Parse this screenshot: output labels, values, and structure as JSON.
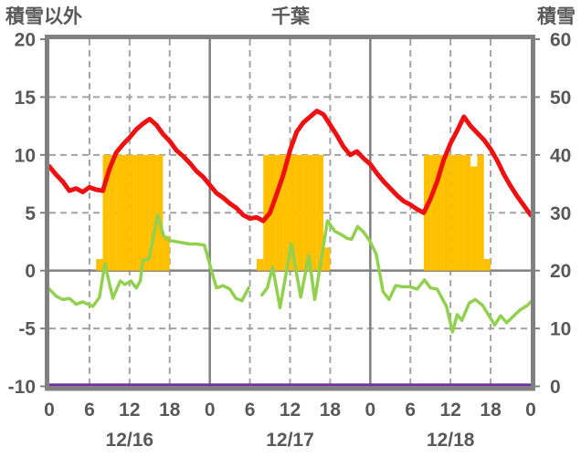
{
  "header": {
    "left_axis_title": "積雪以外",
    "chart_title": "千葉",
    "right_axis_title": "積雪"
  },
  "colors": {
    "background": "#ffffff",
    "border": "#808080",
    "solid_gridline": "#808080",
    "dashed_gridline": "#a3a3a3",
    "text": "#595959",
    "red_line": "#ee1111",
    "green_line": "#92d050",
    "orange_bars": "#ffc000",
    "purple_line": "#7030a0"
  },
  "chart_data": {
    "type": "line+bar",
    "title": "千葉",
    "left_axis": {
      "title": "積雪以外",
      "min": -10,
      "max": 20,
      "ticks": [
        20,
        15,
        10,
        5,
        0,
        -5,
        -10
      ],
      "dashed_gridlines": [
        15,
        10,
        5,
        -5
      ],
      "zero_line": 0
    },
    "right_axis": {
      "title": "積雪",
      "min": 0,
      "max": 60,
      "ticks": [
        60,
        50,
        40,
        30,
        20,
        10,
        0
      ]
    },
    "x_axis": {
      "total_hours": 72,
      "tick_step_hours": 6,
      "tick_labels": [
        "0",
        "6",
        "12",
        "18",
        "0",
        "6",
        "12",
        "18",
        "0",
        "6",
        "12",
        "18",
        "0"
      ],
      "day_boundary_hours": [
        24,
        48
      ],
      "date_labels": [
        "12/16",
        "12/17",
        "12/18"
      ]
    },
    "series": {
      "red_line": {
        "axis": "left",
        "hourly_values": [
          9.0,
          8.3,
          7.7,
          6.9,
          7.1,
          6.8,
          7.2,
          7.0,
          6.9,
          8.8,
          10.2,
          10.9,
          11.5,
          12.2,
          12.7,
          13.1,
          12.6,
          11.8,
          11.2,
          10.4,
          9.9,
          9.3,
          8.6,
          8.1,
          7.4,
          6.7,
          6.3,
          5.8,
          5.4,
          4.8,
          4.5,
          4.6,
          4.3,
          5.0,
          6.6,
          8.3,
          10.4,
          12.0,
          12.8,
          13.3,
          13.8,
          13.5,
          12.6,
          11.7,
          10.7,
          10.0,
          10.3,
          9.7,
          9.2,
          8.4,
          7.7,
          7.1,
          6.5,
          6.0,
          5.7,
          5.3,
          5.0,
          6.2,
          7.7,
          9.6,
          11.0,
          12.1,
          13.3,
          12.5,
          11.9,
          11.3,
          10.5,
          9.5,
          8.3,
          7.3,
          6.4,
          5.6,
          4.8
        ]
      },
      "green_line": {
        "axis": "left",
        "segments": [
          [
            [
              0,
              -1.6
            ],
            [
              1,
              -2.2
            ],
            [
              2,
              -2.5
            ],
            [
              3,
              -2.4
            ],
            [
              4,
              -2.9
            ],
            [
              5,
              -2.7
            ],
            [
              6.5,
              -3.1
            ],
            [
              7.5,
              -2.3
            ],
            [
              8.3,
              0.6
            ],
            [
              9.5,
              -2.4
            ],
            [
              10.6,
              -0.9
            ],
            [
              11.3,
              -1.2
            ],
            [
              12.2,
              -0.9
            ],
            [
              13,
              -1.5
            ],
            [
              13.6,
              -0.9
            ],
            [
              14,
              0.9
            ],
            [
              14.9,
              1.0
            ],
            [
              16.2,
              4.8
            ],
            [
              17.1,
              3.0
            ],
            [
              18,
              2.6
            ],
            [
              19,
              2.5
            ],
            [
              20,
              2.4
            ],
            [
              21,
              2.3
            ],
            [
              22,
              2.3
            ],
            [
              23.2,
              2.2
            ],
            [
              24.4,
              -0.3
            ],
            [
              25,
              -1.5
            ],
            [
              26,
              -1.3
            ],
            [
              27,
              -1.6
            ],
            [
              27.9,
              -2.4
            ],
            [
              28.8,
              -2.6
            ],
            [
              29.8,
              -1.5
            ]
          ],
          [
            [
              31.8,
              -2.1
            ],
            [
              32.6,
              -1.5
            ],
            [
              33.4,
              0.3
            ],
            [
              34.5,
              -3.2
            ],
            [
              36.2,
              2.3
            ],
            [
              37.6,
              -2.3
            ],
            [
              38.8,
              1.3
            ],
            [
              39.7,
              -2.5
            ],
            [
              41.6,
              4.3
            ],
            [
              42.7,
              3.4
            ],
            [
              43.7,
              3.1
            ],
            [
              44.5,
              2.8
            ],
            [
              45.2,
              2.7
            ],
            [
              46.1,
              3.8
            ],
            [
              46.9,
              3.4
            ],
            [
              47.9,
              2.6
            ],
            [
              48.9,
              1.4
            ],
            [
              49.9,
              -1.8
            ],
            [
              50.8,
              -2.5
            ],
            [
              51.8,
              -1.3
            ],
            [
              52.9,
              -1.4
            ],
            [
              54,
              -1.4
            ],
            [
              55,
              -1.6
            ],
            [
              56.1,
              -0.8
            ],
            [
              57,
              -1.5
            ],
            [
              58,
              -1.6
            ],
            [
              59.4,
              -3.1
            ],
            [
              60.3,
              -5.3
            ],
            [
              61,
              -3.8
            ],
            [
              61.7,
              -4.3
            ],
            [
              62.8,
              -2.8
            ],
            [
              63.7,
              -2.5
            ],
            [
              64.8,
              -3.0
            ],
            [
              66.6,
              -4.7
            ],
            [
              67.5,
              -3.9
            ],
            [
              68.4,
              -4.5
            ],
            [
              69.3,
              -4.0
            ],
            [
              70.4,
              -3.4
            ],
            [
              71.5,
              -3.0
            ],
            [
              72,
              -2.7
            ]
          ]
        ]
      },
      "orange_bars": {
        "axis": "left",
        "bar_width_hours": 1,
        "bars": [
          [
            7,
            1
          ],
          [
            8,
            10
          ],
          [
            9,
            10
          ],
          [
            10,
            10
          ],
          [
            11,
            10
          ],
          [
            12,
            10
          ],
          [
            13,
            10
          ],
          [
            14,
            10
          ],
          [
            15,
            10
          ],
          [
            16,
            10
          ],
          [
            17,
            3
          ],
          [
            31,
            1
          ],
          [
            32,
            10
          ],
          [
            33,
            10
          ],
          [
            34,
            10
          ],
          [
            35,
            10
          ],
          [
            36,
            10
          ],
          [
            37,
            10
          ],
          [
            38,
            10
          ],
          [
            39,
            10
          ],
          [
            40,
            10
          ],
          [
            41,
            2
          ],
          [
            56,
            10
          ],
          [
            57,
            10
          ],
          [
            58,
            10
          ],
          [
            59,
            10
          ],
          [
            60,
            10
          ],
          [
            61,
            10
          ],
          [
            62,
            10
          ],
          [
            63,
            9
          ],
          [
            64,
            10
          ],
          [
            65,
            1
          ]
        ]
      },
      "purple_line": {
        "axis": "right",
        "points": [
          [
            0,
            0
          ],
          [
            72,
            0
          ]
        ]
      }
    }
  }
}
